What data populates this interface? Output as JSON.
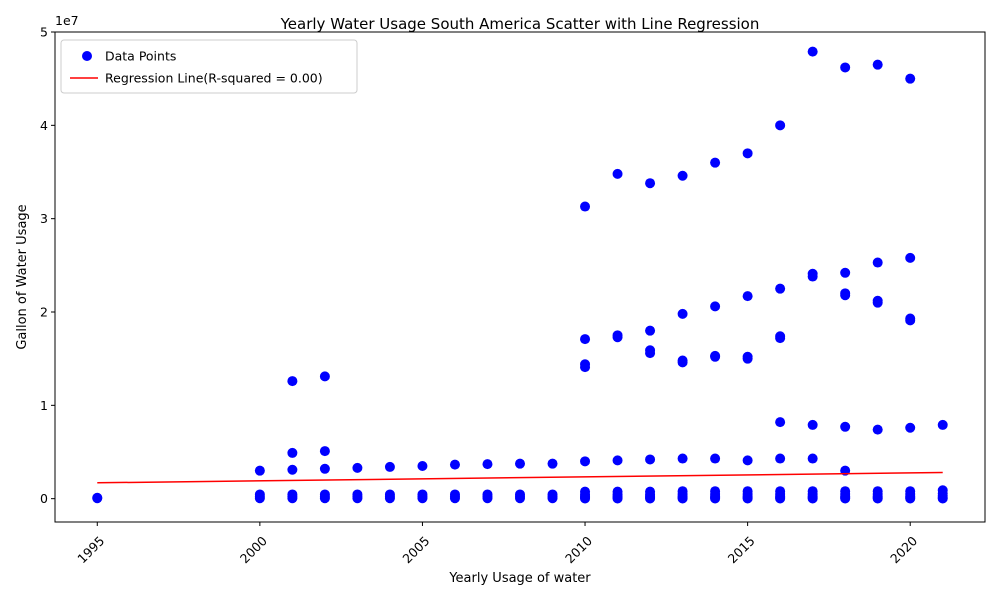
{
  "chart_data": {
    "type": "scatter",
    "title": "Yearly Water Usage South America Scatter with Line Regression",
    "xlabel": "Yearly Usage of water",
    "ylabel": "Gallon of Water Usage",
    "y_offset_label": "1e7",
    "xlim": [
      1993.7,
      2022.3
    ],
    "ylim": [
      -2500000,
      50000000
    ],
    "x_ticks": [
      1995,
      2000,
      2005,
      2010,
      2015,
      2020
    ],
    "y_ticks": [
      0,
      10000000,
      20000000,
      30000000,
      40000000,
      50000000
    ],
    "y_tick_labels": [
      "0",
      "1",
      "2",
      "3",
      "4",
      "5"
    ],
    "grid": false,
    "legend_position": "top-left",
    "series": [
      {
        "name": "Data Points",
        "color": "#0000ff",
        "kind": "scatter",
        "points": [
          [
            1995,
            100000
          ],
          [
            1995,
            50000
          ],
          [
            2000,
            3000000
          ],
          [
            2000,
            450000
          ],
          [
            2000,
            200000
          ],
          [
            2000,
            50000
          ],
          [
            2001,
            12600000
          ],
          [
            2001,
            4900000
          ],
          [
            2001,
            3100000
          ],
          [
            2001,
            450000
          ],
          [
            2001,
            200000
          ],
          [
            2001,
            50000
          ],
          [
            2002,
            13100000
          ],
          [
            2002,
            5100000
          ],
          [
            2002,
            3200000
          ],
          [
            2002,
            450000
          ],
          [
            2002,
            200000
          ],
          [
            2002,
            50000
          ],
          [
            2003,
            3300000
          ],
          [
            2003,
            450000
          ],
          [
            2003,
            200000
          ],
          [
            2003,
            50000
          ],
          [
            2004,
            3400000
          ],
          [
            2004,
            450000
          ],
          [
            2004,
            200000
          ],
          [
            2004,
            50000
          ],
          [
            2005,
            3500000
          ],
          [
            2005,
            450000
          ],
          [
            2005,
            200000
          ],
          [
            2005,
            50000
          ],
          [
            2006,
            3650000
          ],
          [
            2006,
            450000
          ],
          [
            2006,
            200000
          ],
          [
            2006,
            50000
          ],
          [
            2007,
            3700000
          ],
          [
            2007,
            450000
          ],
          [
            2007,
            200000
          ],
          [
            2007,
            50000
          ],
          [
            2008,
            3750000
          ],
          [
            2008,
            450000
          ],
          [
            2008,
            200000
          ],
          [
            2008,
            50000
          ],
          [
            2009,
            3750000
          ],
          [
            2009,
            450000
          ],
          [
            2009,
            200000
          ],
          [
            2009,
            50000
          ],
          [
            2010,
            31300000
          ],
          [
            2010,
            17100000
          ],
          [
            2010,
            14400000
          ],
          [
            2010,
            14100000
          ],
          [
            2010,
            4000000
          ],
          [
            2010,
            750000
          ],
          [
            2010,
            450000
          ],
          [
            2010,
            250000
          ],
          [
            2010,
            100000
          ],
          [
            2010,
            20000
          ],
          [
            2011,
            34800000
          ],
          [
            2011,
            17500000
          ],
          [
            2011,
            17300000
          ],
          [
            2011,
            4100000
          ],
          [
            2011,
            750000
          ],
          [
            2011,
            450000
          ],
          [
            2011,
            250000
          ],
          [
            2011,
            100000
          ],
          [
            2011,
            20000
          ],
          [
            2012,
            33800000
          ],
          [
            2012,
            18000000
          ],
          [
            2012,
            15900000
          ],
          [
            2012,
            15600000
          ],
          [
            2012,
            4200000
          ],
          [
            2012,
            750000
          ],
          [
            2012,
            450000
          ],
          [
            2012,
            250000
          ],
          [
            2012,
            100000
          ],
          [
            2012,
            20000
          ],
          [
            2013,
            34600000
          ],
          [
            2013,
            19800000
          ],
          [
            2013,
            14800000
          ],
          [
            2013,
            14600000
          ],
          [
            2013,
            4300000
          ],
          [
            2013,
            800000
          ],
          [
            2013,
            500000
          ],
          [
            2013,
            250000
          ],
          [
            2013,
            100000
          ],
          [
            2013,
            20000
          ],
          [
            2014,
            36000000
          ],
          [
            2014,
            20600000
          ],
          [
            2014,
            15300000
          ],
          [
            2014,
            15200000
          ],
          [
            2014,
            4300000
          ],
          [
            2014,
            800000
          ],
          [
            2014,
            500000
          ],
          [
            2014,
            250000
          ],
          [
            2014,
            100000
          ],
          [
            2014,
            20000
          ],
          [
            2015,
            37000000
          ],
          [
            2015,
            21700000
          ],
          [
            2015,
            15200000
          ],
          [
            2015,
            15000000
          ],
          [
            2015,
            4100000
          ],
          [
            2015,
            800000
          ],
          [
            2015,
            500000
          ],
          [
            2015,
            250000
          ],
          [
            2015,
            100000
          ],
          [
            2015,
            20000
          ],
          [
            2016,
            40000000
          ],
          [
            2016,
            22500000
          ],
          [
            2016,
            17400000
          ],
          [
            2016,
            17200000
          ],
          [
            2016,
            8200000
          ],
          [
            2016,
            4300000
          ],
          [
            2016,
            800000
          ],
          [
            2016,
            500000
          ],
          [
            2016,
            250000
          ],
          [
            2016,
            100000
          ],
          [
            2016,
            20000
          ],
          [
            2017,
            47900000
          ],
          [
            2017,
            24100000
          ],
          [
            2017,
            23800000
          ],
          [
            2017,
            7900000
          ],
          [
            2017,
            4300000
          ],
          [
            2017,
            800000
          ],
          [
            2017,
            500000
          ],
          [
            2017,
            250000
          ],
          [
            2017,
            100000
          ],
          [
            2017,
            20000
          ],
          [
            2018,
            46200000
          ],
          [
            2018,
            24200000
          ],
          [
            2018,
            22000000
          ],
          [
            2018,
            21800000
          ],
          [
            2018,
            7700000
          ],
          [
            2018,
            3000000
          ],
          [
            2018,
            800000
          ],
          [
            2018,
            500000
          ],
          [
            2018,
            250000
          ],
          [
            2018,
            100000
          ],
          [
            2018,
            20000
          ],
          [
            2019,
            46500000
          ],
          [
            2019,
            25300000
          ],
          [
            2019,
            21200000
          ],
          [
            2019,
            21000000
          ],
          [
            2019,
            7400000
          ],
          [
            2019,
            800000
          ],
          [
            2019,
            500000
          ],
          [
            2019,
            250000
          ],
          [
            2019,
            100000
          ],
          [
            2019,
            20000
          ],
          [
            2020,
            45000000
          ],
          [
            2020,
            25800000
          ],
          [
            2020,
            19300000
          ],
          [
            2020,
            19100000
          ],
          [
            2020,
            7600000
          ],
          [
            2020,
            800000
          ],
          [
            2020,
            500000
          ],
          [
            2020,
            250000
          ],
          [
            2020,
            100000
          ],
          [
            2020,
            20000
          ],
          [
            2021,
            7900000
          ],
          [
            2021,
            900000
          ],
          [
            2021,
            550000
          ],
          [
            2021,
            300000
          ],
          [
            2021,
            100000
          ],
          [
            2021,
            20000
          ]
        ]
      },
      {
        "name": "Regression Line(R-squared = 0.00)",
        "color": "#ff0000",
        "kind": "line",
        "x": [
          1995,
          2021
        ],
        "y": [
          1700000,
          2800000
        ]
      }
    ]
  }
}
